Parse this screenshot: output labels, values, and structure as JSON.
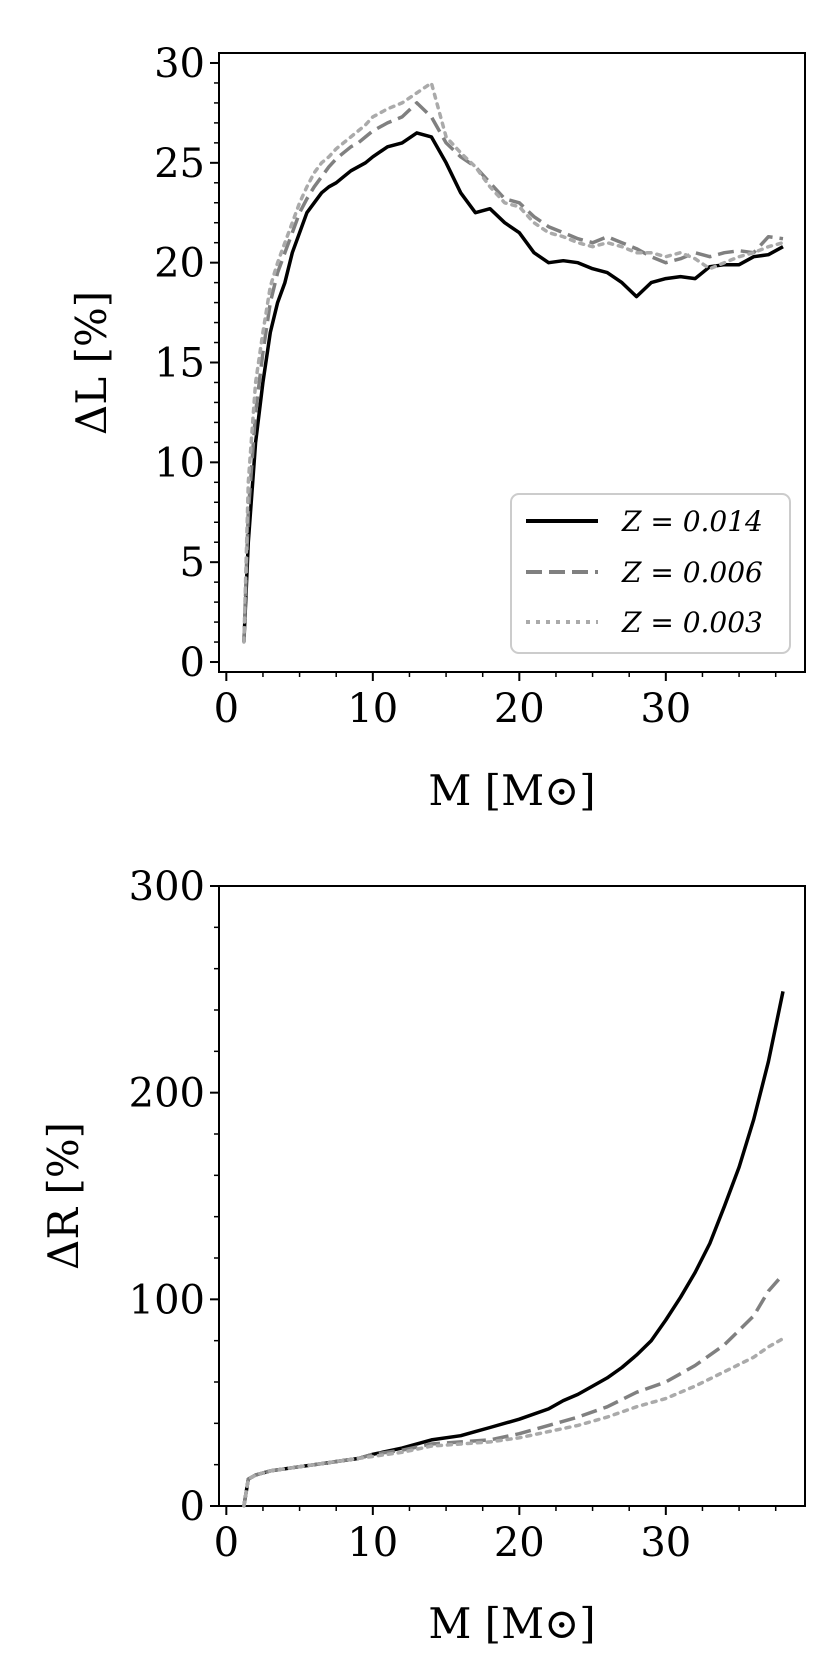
{
  "chart_data": [
    {
      "type": "line",
      "xlabel": "M [M⊙]",
      "ylabel": "ΔL [%]",
      "xlim": [
        -0.5,
        39.5
      ],
      "ylim": [
        -0.5,
        30.5
      ],
      "xticks": [
        0,
        10,
        20,
        30
      ],
      "yticks": [
        0,
        5,
        10,
        15,
        20,
        25,
        30
      ],
      "xtick_labels": [
        "0",
        "10",
        "20",
        "30"
      ],
      "ytick_labels": [
        "0",
        "5",
        "10",
        "15",
        "20",
        "25",
        "30"
      ],
      "grid": false,
      "legend_position": "lower-right",
      "series": [
        {
          "name": "Z = 0.014",
          "style": "solid",
          "color": "#000000",
          "x": [
            1.2,
            1.5,
            2,
            2.5,
            3,
            3.5,
            4,
            4.5,
            5,
            5.5,
            6,
            6.5,
            7,
            7.5,
            8,
            8.5,
            9,
            9.5,
            10,
            11,
            12,
            13,
            14,
            15,
            16,
            17,
            18,
            19,
            20,
            21,
            22,
            23,
            24,
            25,
            26,
            27,
            28,
            29,
            30,
            31,
            32,
            33,
            34,
            35,
            36,
            37,
            38
          ],
          "y": [
            1.0,
            6.0,
            11.0,
            14.0,
            16.5,
            18.0,
            19.0,
            20.5,
            21.5,
            22.5,
            23.0,
            23.5,
            23.8,
            24.0,
            24.3,
            24.6,
            24.8,
            25.0,
            25.3,
            25.8,
            26.0,
            26.5,
            26.3,
            25.0,
            23.5,
            22.5,
            22.7,
            22.0,
            21.5,
            20.5,
            20.0,
            20.1,
            20.0,
            19.7,
            19.5,
            19.0,
            18.3,
            19.0,
            19.2,
            19.3,
            19.2,
            19.8,
            19.9,
            19.9,
            20.3,
            20.4,
            20.8
          ]
        },
        {
          "name": "Z = 0.006",
          "style": "dashed",
          "color": "#808080",
          "x": [
            1.2,
            1.5,
            2,
            2.5,
            3,
            3.5,
            4,
            4.5,
            5,
            5.5,
            6,
            6.5,
            7,
            7.5,
            8,
            8.5,
            9,
            9.5,
            10,
            11,
            12,
            13,
            14,
            15,
            16,
            17,
            18,
            19,
            20,
            21,
            22,
            23,
            24,
            25,
            26,
            27,
            28,
            29,
            30,
            31,
            32,
            33,
            34,
            35,
            36,
            37,
            38
          ],
          "y": [
            1.0,
            7.5,
            12.5,
            15.5,
            18.0,
            19.5,
            20.5,
            21.5,
            22.5,
            23.2,
            23.8,
            24.3,
            24.8,
            25.2,
            25.5,
            25.8,
            26.0,
            26.3,
            26.6,
            27.0,
            27.3,
            28.0,
            27.3,
            26.0,
            25.3,
            24.8,
            24.0,
            23.2,
            23.0,
            22.3,
            21.8,
            21.5,
            21.2,
            21.0,
            21.3,
            21.0,
            20.7,
            20.3,
            20.0,
            20.2,
            20.5,
            20.3,
            20.5,
            20.6,
            20.5,
            21.3,
            21.2
          ]
        },
        {
          "name": "Z = 0.003",
          "style": "dotted",
          "color": "#aaaaaa",
          "x": [
            1.2,
            1.5,
            2,
            2.5,
            3,
            3.5,
            4,
            4.5,
            5,
            5.5,
            6,
            6.5,
            7,
            7.5,
            8,
            8.5,
            9,
            9.5,
            10,
            11,
            12,
            13,
            14,
            15,
            16,
            17,
            18,
            19,
            20,
            21,
            22,
            23,
            24,
            25,
            26,
            27,
            28,
            29,
            30,
            31,
            32,
            33,
            34,
            35,
            36,
            37,
            38
          ],
          "y": [
            1.0,
            9.0,
            14.0,
            16.5,
            18.8,
            20.0,
            21.0,
            22.0,
            23.0,
            23.8,
            24.5,
            25.0,
            25.3,
            25.7,
            26.0,
            26.3,
            26.6,
            26.9,
            27.3,
            27.7,
            28.0,
            28.5,
            29.0,
            26.3,
            25.5,
            24.8,
            23.8,
            23.0,
            22.8,
            22.0,
            21.5,
            21.3,
            21.0,
            20.8,
            21.0,
            20.8,
            20.5,
            20.5,
            20.3,
            20.5,
            20.2,
            19.7,
            20.0,
            20.3,
            20.5,
            20.8,
            21.0
          ]
        }
      ]
    },
    {
      "type": "line",
      "xlabel": "M [M⊙]",
      "ylabel": "ΔR [%]",
      "xlim": [
        -0.5,
        39.5
      ],
      "ylim": [
        0,
        300
      ],
      "xticks": [
        0,
        10,
        20,
        30
      ],
      "yticks": [
        0,
        100,
        200,
        300
      ],
      "xtick_labels": [
        "0",
        "10",
        "20",
        "30"
      ],
      "ytick_labels": [
        "0",
        "100",
        "200",
        "300"
      ],
      "grid": false,
      "series": [
        {
          "name": "Z = 0.014",
          "style": "solid",
          "color": "#000000",
          "x": [
            1.2,
            1.5,
            2,
            3,
            4,
            5,
            6,
            7,
            8,
            9,
            10,
            12,
            14,
            16,
            17,
            18,
            20,
            22,
            23,
            24,
            25,
            26,
            27,
            28,
            29,
            30,
            31,
            32,
            33,
            34,
            35,
            36,
            37,
            38
          ],
          "y": [
            0,
            13,
            15,
            17,
            18,
            19,
            20,
            21,
            22,
            23,
            25,
            28,
            32,
            34,
            36,
            38,
            42,
            47,
            51,
            54,
            58,
            62,
            67,
            73,
            80,
            90,
            101,
            113,
            127,
            145,
            164,
            187,
            215,
            249
          ]
        },
        {
          "name": "Z = 0.006",
          "style": "dashed",
          "color": "#808080",
          "x": [
            1.2,
            1.5,
            2,
            3,
            4,
            5,
            6,
            7,
            8,
            9,
            10,
            12,
            14,
            16,
            18,
            20,
            22,
            24,
            26,
            28,
            30,
            32,
            34,
            36,
            37,
            38
          ],
          "y": [
            0,
            13,
            15,
            17,
            18,
            19,
            20,
            21,
            22,
            23,
            25,
            27,
            30,
            31,
            32,
            35,
            39,
            43,
            48,
            55,
            60,
            68,
            78,
            92,
            104,
            112
          ]
        },
        {
          "name": "Z = 0.003",
          "style": "dotted",
          "color": "#aaaaaa",
          "x": [
            1.2,
            1.5,
            2,
            3,
            4,
            5,
            6,
            7,
            8,
            9,
            10,
            12,
            14,
            16,
            18,
            20,
            22,
            24,
            26,
            28,
            30,
            32,
            34,
            36,
            37,
            38
          ],
          "y": [
            0,
            13,
            15,
            17,
            18,
            19,
            20,
            21,
            22,
            23,
            24,
            26,
            29,
            30,
            31,
            33,
            36,
            39,
            43,
            48,
            52,
            58,
            65,
            72,
            77,
            81
          ]
        }
      ]
    }
  ]
}
